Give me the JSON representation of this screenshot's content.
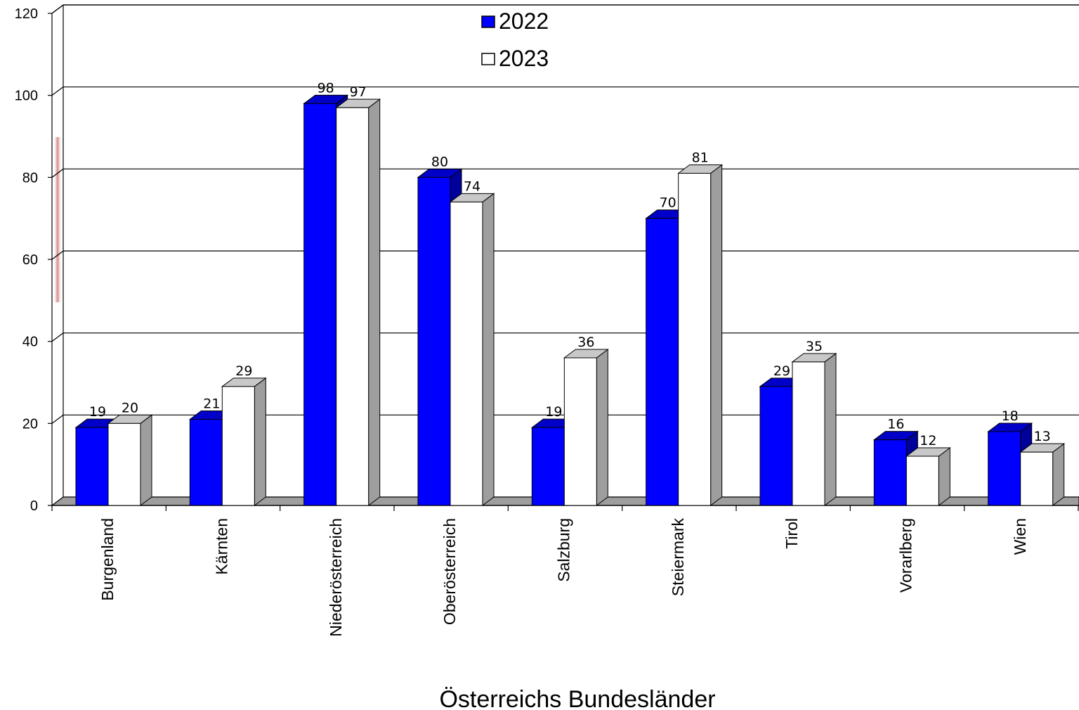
{
  "chart_data": {
    "type": "bar",
    "categories": [
      "Burgenland",
      "Kärnten",
      "Niederösterreich",
      "Oberösterreich",
      "Salzburg",
      "Steiermark",
      "Tirol",
      "Vorarlberg",
      "Wien"
    ],
    "series": [
      {
        "name": "2022",
        "values": [
          19,
          21,
          98,
          80,
          19,
          70,
          29,
          16,
          18
        ],
        "color": "#0000ff"
      },
      {
        "name": "2023",
        "values": [
          20,
          29,
          97,
          74,
          36,
          81,
          35,
          12,
          13
        ],
        "color": "#ffffff"
      }
    ],
    "xlabel": "Österreichs Bundesländer",
    "ylabel": "",
    "ylim": [
      0,
      120
    ],
    "yticks": [
      0,
      20,
      40,
      60,
      80,
      100,
      120
    ],
    "grid": true,
    "legend_position": "top-center",
    "style": "3d-clustered-bar"
  }
}
